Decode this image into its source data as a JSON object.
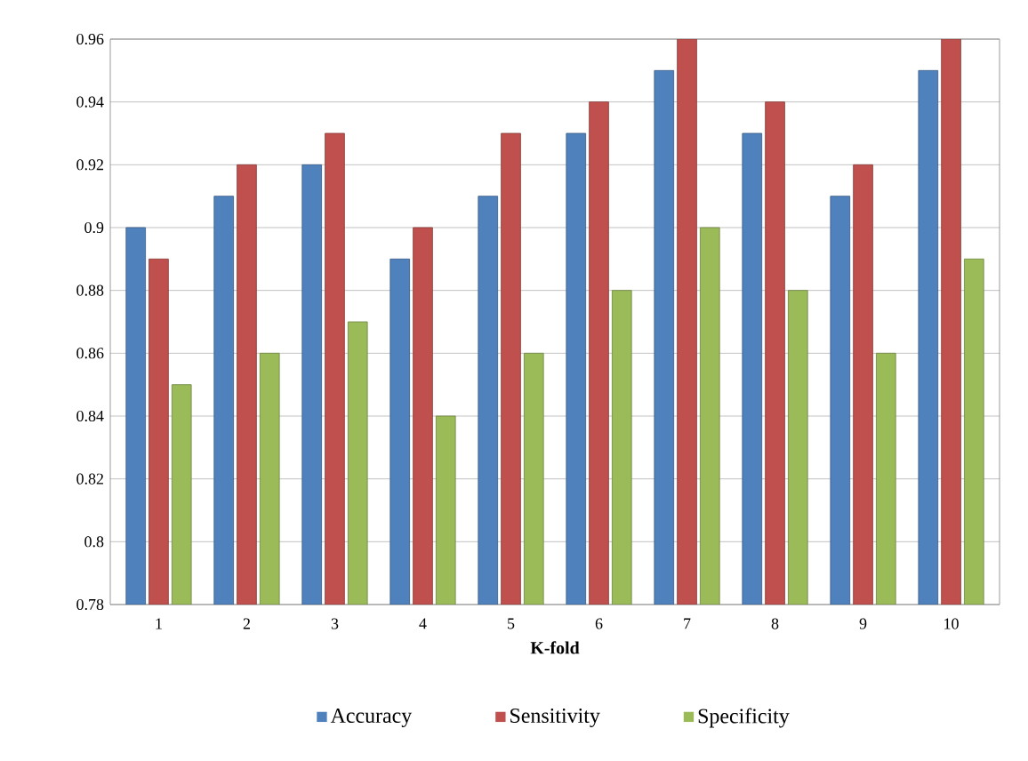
{
  "chart_data": {
    "type": "bar",
    "xlabel": "K-fold",
    "categories": [
      "1",
      "2",
      "3",
      "4",
      "5",
      "6",
      "7",
      "8",
      "9",
      "10"
    ],
    "series": [
      {
        "name": "Accuracy",
        "color": "#4f81bd",
        "values": [
          0.9,
          0.91,
          0.92,
          0.89,
          0.91,
          0.93,
          0.95,
          0.93,
          0.91,
          0.95
        ]
      },
      {
        "name": "Sensitivity",
        "color": "#c0504d",
        "values": [
          0.89,
          0.92,
          0.93,
          0.9,
          0.93,
          0.94,
          0.96,
          0.94,
          0.92,
          0.96
        ]
      },
      {
        "name": "Specificity",
        "color": "#9bbb59",
        "values": [
          0.85,
          0.86,
          0.87,
          0.84,
          0.86,
          0.88,
          0.9,
          0.88,
          0.86,
          0.89
        ]
      }
    ],
    "ylim": [
      0.78,
      0.96
    ],
    "yticks": [
      0.78,
      0.8,
      0.82,
      0.84,
      0.86,
      0.88,
      0.9,
      0.92,
      0.94,
      0.96
    ],
    "grid": "y",
    "legend": "bottom"
  }
}
